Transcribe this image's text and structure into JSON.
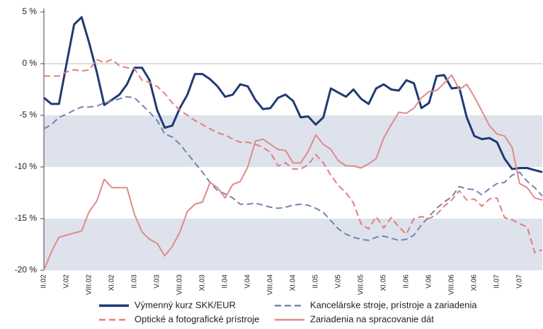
{
  "chart_data": {
    "type": "line",
    "categories": [
      "II.02",
      null,
      null,
      "V.02",
      null,
      null,
      "VIII.02",
      null,
      null,
      "XI.02",
      null,
      null,
      "II.03",
      null,
      null,
      "V.03",
      null,
      null,
      "VIII.03",
      null,
      null,
      "XI.03",
      null,
      null,
      "II.04",
      null,
      null,
      "V.04",
      null,
      null,
      "VIII.04",
      null,
      null,
      "XI.04",
      null,
      null,
      "II.05",
      null,
      null,
      "V.05",
      null,
      null,
      "VIII.05",
      null,
      null,
      "XI.05",
      null,
      null,
      "II.06",
      null,
      null,
      "V.06",
      null,
      null,
      "VIII.06",
      null,
      null,
      "XI.06",
      null,
      null,
      "II.07",
      null,
      null,
      "V.07",
      null,
      null,
      null
    ],
    "series": [
      {
        "name": "Výmenný kurz SKK/EUR",
        "color": "#1f3a73",
        "dashed": false,
        "width": 3,
        "values": [
          -3.3,
          -3.9,
          -3.9,
          0,
          3.8,
          4.5,
          2.0,
          -0.8,
          -4.0,
          -3.5,
          -3.0,
          -2.0,
          -0.4,
          -0.4,
          -1.6,
          -4.5,
          -6.2,
          -6.0,
          -4.3,
          -3.0,
          -1.0,
          -1.0,
          -1.5,
          -2.2,
          -3.2,
          -3.0,
          -2.0,
          -2.2,
          -3.5,
          -4.4,
          -4.3,
          -3.3,
          -3.0,
          -3.6,
          -5.2,
          -5.1,
          -5.9,
          -5.2,
          -2.4,
          -2.8,
          -3.2,
          -2.5,
          -3.4,
          -3.9,
          -2.4,
          -2.0,
          -2.5,
          -2.6,
          -1.6,
          -1.9,
          -4.3,
          -3.8,
          -1.2,
          -1.1,
          -2.4,
          -2.3,
          -5.2,
          -7.0,
          -7.3,
          -7.2,
          -7.6,
          -9.2,
          -10.2,
          -10.1,
          -10.1,
          -10.3,
          -10.5
        ]
      },
      {
        "name": "Kancelárske stroje, prístroje a zariadenia",
        "color": "#7c80b0",
        "dashed": true,
        "width": 2,
        "values": [
          -6.3,
          -5.9,
          -5.2,
          -4.9,
          -4.5,
          -4.2,
          -4.2,
          -4.1,
          -3.8,
          -3.6,
          -3.4,
          -3.2,
          -3.3,
          -4.0,
          -4.7,
          -5.5,
          -6.8,
          -7.1,
          -7.8,
          -8.7,
          -9.6,
          -10.5,
          -11.5,
          -12.3,
          -12.6,
          -13.0,
          -13.6,
          -13.6,
          -13.5,
          -13.7,
          -13.9,
          -14.0,
          -13.9,
          -13.7,
          -13.6,
          -13.7,
          -14.0,
          -14.4,
          -15.2,
          -16.0,
          -16.5,
          -16.8,
          -17.0,
          -17.1,
          -16.8,
          -16.7,
          -16.9,
          -17.1,
          -17.0,
          -16.6,
          -15.6,
          -14.8,
          -14.0,
          -13.4,
          -12.9,
          -11.9,
          -12.1,
          -12.2,
          -12.7,
          -12.1,
          -11.6,
          -11.5,
          -10.8,
          -10.5,
          -11.4,
          -12.0,
          -12.8
        ]
      },
      {
        "name": "Optické a fotografické prístroje",
        "color": "#e07e7e",
        "dashed": true,
        "width": 2,
        "values": [
          -1.2,
          -1.2,
          -1.2,
          -0.8,
          -0.6,
          -0.7,
          -0.6,
          0.4,
          0.1,
          0.4,
          -0.2,
          -0.4,
          -0.5,
          -1.6,
          -1.8,
          -2.2,
          -2.9,
          -3.8,
          -4.5,
          -5.0,
          -5.5,
          -5.9,
          -6.3,
          -6.7,
          -6.9,
          -7.3,
          -7.6,
          -7.6,
          -7.8,
          -8.1,
          -8.6,
          -9.9,
          -9.6,
          -10.2,
          -10.2,
          -9.8,
          -8.8,
          -9.6,
          -10.8,
          -11.8,
          -12.5,
          -13.5,
          -15.5,
          -16.0,
          -14.8,
          -15.9,
          -14.9,
          -15.8,
          -16.5,
          -15.0,
          -14.8,
          -15.0,
          -14.6,
          -13.8,
          -13.2,
          -12.3,
          -13.2,
          -13.1,
          -13.8,
          -13.1,
          -13.0,
          -14.9,
          -15.1,
          -15.5,
          -15.8,
          -18.3,
          -18.0
        ]
      },
      {
        "name": "Zariadenia na spracovanie dát",
        "color": "#e08a8a",
        "dashed": false,
        "width": 2,
        "values": [
          -20.0,
          -18.2,
          -16.8,
          -16.6,
          -16.4,
          -16.2,
          -14.3,
          -13.3,
          -11.2,
          -12.0,
          -12.0,
          -12.0,
          -14.6,
          -16.3,
          -17.0,
          -17.4,
          -18.6,
          -17.7,
          -16.3,
          -14.3,
          -13.6,
          -13.4,
          -11.5,
          -12.0,
          -13.0,
          -11.7,
          -11.4,
          -10.0,
          -7.5,
          -7.3,
          -7.8,
          -8.3,
          -8.4,
          -9.6,
          -9.6,
          -8.5,
          -6.9,
          -7.8,
          -8.3,
          -9.4,
          -9.9,
          -9.9,
          -10.1,
          -9.7,
          -9.2,
          -7.2,
          -5.9,
          -4.7,
          -4.8,
          -4.3,
          -3.3,
          -2.7,
          -2.6,
          -1.9,
          -1.1,
          -2.5,
          -2.0,
          -3.2,
          -4.6,
          -6.0,
          -6.8,
          -7.0,
          -8.1,
          -11.6,
          -12.0,
          -13.0,
          -13.2
        ]
      }
    ],
    "ylim": [
      -20,
      5
    ],
    "yticks": [
      {
        "value": -20,
        "label": "-20 %"
      },
      {
        "value": -15,
        "label": "-15 %"
      },
      {
        "value": -10,
        "label": "-10 %"
      },
      {
        "value": -5,
        "label": "-5 %"
      },
      {
        "value": 0,
        "label": "0 %"
      },
      {
        "value": 5,
        "label": "5 %"
      }
    ],
    "bands": [
      [
        -10,
        -5
      ],
      [
        -20,
        -15
      ]
    ],
    "band_color": "#dde2ec",
    "legend": "bottom"
  }
}
